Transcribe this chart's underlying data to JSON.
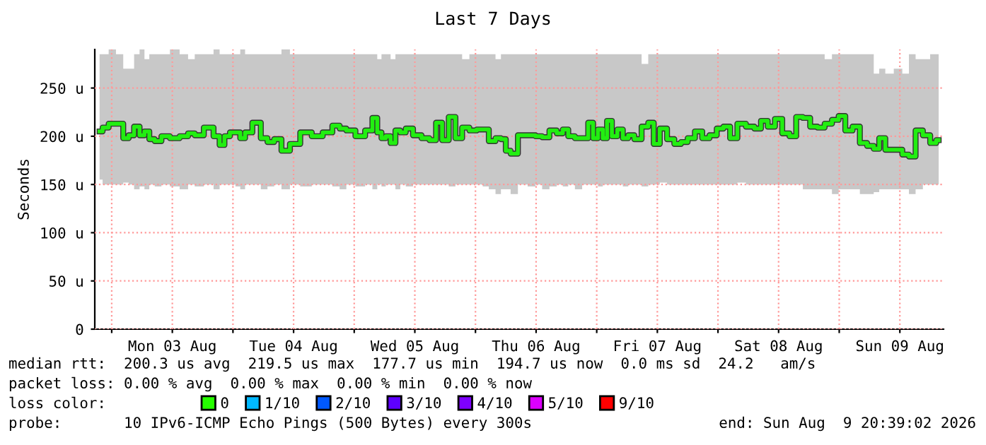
{
  "chart_data": {
    "type": "step",
    "title": "Last 7 Days",
    "ylabel": "Seconds",
    "xlim": [
      "2026-08-02T20:39",
      "2026-08-09T20:39"
    ],
    "xticks": [
      {
        "value": "2026-08-03",
        "label": null
      },
      {
        "value": "2026-08-03T12:00",
        "label": "Mon 03 Aug"
      },
      {
        "value": "2026-08-04",
        "label": null
      },
      {
        "value": "2026-08-04T12:00",
        "label": "Tue 04 Aug"
      },
      {
        "value": "2026-08-05",
        "label": null
      },
      {
        "value": "2026-08-05T12:00",
        "label": "Wed 05 Aug"
      },
      {
        "value": "2026-08-06",
        "label": null
      },
      {
        "value": "2026-08-06T12:00",
        "label": "Thu 06 Aug"
      },
      {
        "value": "2026-08-07",
        "label": null
      },
      {
        "value": "2026-08-07T12:00",
        "label": "Fri 07 Aug"
      },
      {
        "value": "2026-08-08",
        "label": null
      },
      {
        "value": "2026-08-08T12:00",
        "label": "Sat 08 Aug"
      },
      {
        "value": "2026-08-09",
        "label": null
      },
      {
        "value": "2026-08-09T12:00",
        "label": "Sun 09 Aug"
      }
    ],
    "ylim": [
      0,
      290
    ],
    "yticks": [
      0,
      {
        "value": 50,
        "label": "50 u"
      },
      {
        "value": 100,
        "label": "100 u"
      },
      {
        "value": 150,
        "label": "150 u"
      },
      {
        "value": 200,
        "label": "200 u"
      },
      {
        "value": 250,
        "label": "250 u"
      }
    ],
    "grid": true,
    "legend": "bottom",
    "legend_title": "loss color:",
    "series": [
      {
        "color": "#22ee11",
        "x": [
          "2026-08-02T21:36",
          "2026-08-02T22:48",
          "2026-08-03T00:00",
          "2026-08-03T01:41",
          "2026-08-03T02:53",
          "2026-08-03T03:50",
          "2026-08-03T05:02",
          "2026-08-03T06:00",
          "2026-08-03T06:58",
          "2026-08-03T07:55",
          "2026-08-03T09:07",
          "2026-08-03T10:34",
          "2026-08-03T12:29",
          "2026-08-03T14:24",
          "2026-08-03T15:50",
          "2026-08-03T17:02",
          "2026-08-03T19:26",
          "2026-08-03T20:53",
          "2026-08-03T21:50",
          "2026-08-03T22:48",
          "2026-08-04T00:00",
          "2026-08-04T00:58",
          "2026-08-04T01:55",
          "2026-08-04T02:53",
          "2026-08-04T04:48",
          "2026-08-04T06:14",
          "2026-08-04T07:26",
          "2026-08-04T08:53",
          "2026-08-04T10:19",
          "2026-08-04T12:14",
          "2026-08-04T14:24",
          "2026-08-04T16:48",
          "2026-08-04T18:43",
          "2026-08-04T20:38",
          "2026-08-04T21:36",
          "2026-08-04T23:17",
          "2026-08-05T01:12",
          "2026-08-05T03:07",
          "2026-08-05T04:05",
          "2026-08-05T05:02",
          "2026-08-05T05:46",
          "2026-08-05T06:43",
          "2026-08-05T07:41",
          "2026-08-05T08:38",
          "2026-08-05T09:36",
          "2026-08-05T10:48",
          "2026-08-05T12:29",
          "2026-08-05T14:10",
          "2026-08-05T15:36",
          "2026-08-05T16:48",
          "2026-08-05T18:00",
          "2026-08-05T19:26",
          "2026-08-05T20:38",
          "2026-08-05T22:05",
          "2026-08-05T23:31",
          "2026-08-06T00:58",
          "2026-08-06T01:55",
          "2026-08-06T03:22",
          "2026-08-06T04:34",
          "2026-08-06T05:31",
          "2026-08-06T06:29",
          "2026-08-06T07:26",
          "2026-08-06T09:22",
          "2026-08-06T11:17",
          "2026-08-06T12:29",
          "2026-08-06T13:55",
          "2026-08-06T15:22",
          "2026-08-06T16:48",
          "2026-08-06T17:46",
          "2026-08-06T18:58",
          "2026-08-06T20:24",
          "2026-08-06T21:50",
          "2026-08-06T22:48",
          "2026-08-06T23:46",
          "2026-08-07T00:43",
          "2026-08-07T01:41",
          "2026-08-07T02:24",
          "2026-08-07T03:36",
          "2026-08-07T04:34",
          "2026-08-07T05:46",
          "2026-08-07T06:43",
          "2026-08-07T08:10",
          "2026-08-07T09:36",
          "2026-08-07T10:48",
          "2026-08-07T11:46",
          "2026-08-07T13:12",
          "2026-08-07T14:38",
          "2026-08-07T16:05",
          "2026-08-07T17:17",
          "2026-08-07T18:43",
          "2026-08-07T20:10",
          "2026-08-07T21:36",
          "2026-08-07T23:02",
          "2026-08-08T00:29",
          "2026-08-08T01:41",
          "2026-08-08T03:07",
          "2026-08-08T04:34",
          "2026-08-08T06:29",
          "2026-08-08T07:55",
          "2026-08-08T09:07",
          "2026-08-08T10:34",
          "2026-08-08T12:00",
          "2026-08-08T13:26",
          "2026-08-08T14:53",
          "2026-08-08T16:05",
          "2026-08-08T17:31",
          "2026-08-08T18:58",
          "2026-08-08T20:24",
          "2026-08-08T21:50",
          "2026-08-08T23:17",
          "2026-08-09T00:29",
          "2026-08-09T01:55",
          "2026-08-09T03:22",
          "2026-08-09T04:48",
          "2026-08-09T06:14",
          "2026-08-09T07:26",
          "2026-08-09T08:24",
          "2026-08-09T09:50",
          "2026-08-09T11:46",
          "2026-08-09T13:12",
          "2026-08-09T14:24",
          "2026-08-09T15:50",
          "2026-08-09T17:17",
          "2026-08-09T18:43",
          "2026-08-09T19:41"
        ],
        "values": [
          205,
          209,
          213,
          213,
          198,
          201,
          210,
          201,
          205,
          197,
          195,
          200,
          198,
          200,
          203,
          201,
          209,
          200,
          191,
          200,
          204,
          204,
          198,
          204,
          214,
          198,
          194,
          197,
          185,
          192,
          204,
          200,
          204,
          211,
          208,
          206,
          200,
          206,
          219,
          204,
          198,
          200,
          193,
          206,
          204,
          208,
          201,
          198,
          196,
          214,
          196,
          220,
          198,
          209,
          206,
          207,
          207,
          195,
          198,
          197,
          185,
          182,
          201,
          201,
          200,
          199,
          206,
          203,
          207,
          200,
          198,
          198,
          214,
          198,
          207,
          198,
          216,
          200,
          207,
          198,
          201,
          197,
          210,
          214,
          192,
          208,
          197,
          192,
          194,
          198,
          205,
          198,
          201,
          208,
          210,
          198,
          213,
          210,
          208,
          216,
          210,
          218,
          203,
          200,
          220,
          219,
          210,
          209,
          213,
          217,
          221,
          206,
          210,
          193,
          190,
          187,
          198,
          186,
          186,
          181,
          179,
          206,
          201,
          193,
          196
        ],
        "lower": [
          155,
          150,
          150,
          150,
          152,
          150,
          145,
          148,
          145,
          150,
          148,
          150,
          148,
          145,
          150,
          148,
          150,
          145,
          150,
          150,
          150,
          148,
          145,
          150,
          150,
          145,
          148,
          150,
          145,
          150,
          148,
          150,
          150,
          148,
          145,
          150,
          148,
          150,
          145,
          150,
          148,
          150,
          150,
          145,
          150,
          148,
          150,
          150,
          150,
          150,
          150,
          148,
          150,
          150,
          150,
          150,
          148,
          145,
          140,
          145,
          145,
          140,
          150,
          148,
          150,
          145,
          148,
          150,
          148,
          150,
          145,
          150,
          150,
          150,
          148,
          150,
          150,
          150,
          150,
          148,
          150,
          150,
          148,
          150,
          150,
          152,
          150,
          150,
          150,
          150,
          150,
          150,
          150,
          150,
          150,
          150,
          152,
          150,
          150,
          150,
          150,
          150,
          150,
          150,
          150,
          145,
          145,
          145,
          145,
          140,
          145,
          145,
          145,
          140,
          140,
          142,
          145,
          145,
          145,
          145,
          140,
          145,
          150,
          150,
          150
        ],
        "upper": [
          285,
          285,
          290,
          285,
          270,
          270,
          285,
          290,
          280,
          285,
          285,
          285,
          290,
          285,
          280,
          285,
          285,
          290,
          285,
          285,
          285,
          285,
          290,
          285,
          285,
          285,
          285,
          285,
          290,
          285,
          285,
          285,
          285,
          285,
          285,
          285,
          285,
          285,
          285,
          280,
          285,
          285,
          280,
          285,
          285,
          285,
          285,
          285,
          285,
          285,
          285,
          285,
          285,
          280,
          285,
          285,
          285,
          285,
          280,
          285,
          285,
          285,
          285,
          285,
          285,
          285,
          285,
          285,
          285,
          285,
          285,
          285,
          285,
          285,
          285,
          285,
          285,
          285,
          285,
          285,
          285,
          285,
          275,
          285,
          285,
          285,
          285,
          285,
          285,
          285,
          285,
          285,
          285,
          285,
          285,
          285,
          285,
          285,
          285,
          285,
          285,
          285,
          285,
          285,
          285,
          285,
          285,
          285,
          280,
          285,
          285,
          285,
          285,
          285,
          285,
          265,
          270,
          265,
          270,
          265,
          285,
          280,
          280,
          285,
          285
        ]
      },
      {
        "name": "0",
        "color": "#26ff00"
      },
      {
        "name": "1/10",
        "color": "#00b8ff"
      },
      {
        "name": "2/10",
        "color": "#0059ff"
      },
      {
        "name": "3/10",
        "color": "#5e00ff"
      },
      {
        "name": "4/10",
        "color": "#7e00ff"
      },
      {
        "name": "5/10",
        "color": "#dd00ff"
      },
      {
        "name": "9/10",
        "color": "#ff0000"
      }
    ],
    "annotations": [
      "median rtt:  200.3 us avg  219.5 us max  177.7 us min  194.7 us now  0.0 ms sd  24.2   am/s",
      "packet loss: 0.00 % avg  0.00 % max  0.00 % min  0.00 % now",
      "probe:       10 IPv6-ICMP Echo Pings (500 Bytes) every 300s",
      "end: Sun Aug  9 20:39:02 2026"
    ]
  }
}
